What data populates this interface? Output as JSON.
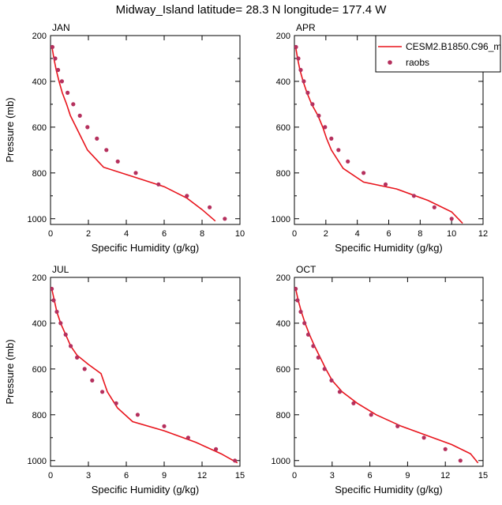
{
  "figure": {
    "title": "Midway_Island  latitude= 28.3 N longitude= 177.4 W"
  },
  "colors": {
    "model_line": "#e8141c",
    "obs_marker": "#b5305d",
    "axis": "#000000"
  },
  "chart_data": [
    {
      "type": "line",
      "panel_label": "JAN",
      "xlabel": "Specific Humidity (g/kg)",
      "ylabel": "Pressure (mb)",
      "xlim": [
        0,
        10
      ],
      "ylim": [
        200,
        1025
      ],
      "y_reversed": true,
      "xticks": [
        0,
        2,
        4,
        6,
        8,
        10
      ],
      "yticks": [
        200,
        400,
        600,
        800,
        1000
      ],
      "series": [
        {
          "name": "CESM2.B1850.C96_m",
          "style": "line",
          "points": [
            [
              0.08,
              250
            ],
            [
              0.18,
              300
            ],
            [
              0.3,
              350
            ],
            [
              0.45,
              400
            ],
            [
              0.62,
              450
            ],
            [
              0.85,
              500
            ],
            [
              1.05,
              550
            ],
            [
              1.35,
              600
            ],
            [
              1.65,
              650
            ],
            [
              1.95,
              700
            ],
            [
              2.8,
              775
            ],
            [
              4.5,
              820
            ],
            [
              6.0,
              860
            ],
            [
              7.2,
              910
            ],
            [
              8.0,
              960
            ],
            [
              8.7,
              1010
            ]
          ]
        },
        {
          "name": "raobs",
          "style": "marker",
          "points": [
            [
              0.1,
              250
            ],
            [
              0.25,
              300
            ],
            [
              0.4,
              350
            ],
            [
              0.6,
              400
            ],
            [
              0.9,
              450
            ],
            [
              1.2,
              500
            ],
            [
              1.55,
              550
            ],
            [
              1.95,
              600
            ],
            [
              2.45,
              650
            ],
            [
              2.95,
              700
            ],
            [
              3.55,
              750
            ],
            [
              4.5,
              800
            ],
            [
              5.7,
              850
            ],
            [
              7.2,
              900
            ],
            [
              8.4,
              950
            ],
            [
              9.2,
              1000
            ]
          ]
        }
      ]
    },
    {
      "type": "line",
      "panel_label": "APR",
      "xlabel": "Specific Humidity (g/kg)",
      "ylabel": "",
      "xlim": [
        0,
        12
      ],
      "ylim": [
        200,
        1025
      ],
      "y_reversed": true,
      "xticks": [
        0,
        2,
        4,
        6,
        8,
        10,
        12
      ],
      "yticks": [
        200,
        400,
        600,
        800,
        1000
      ],
      "legend": "top-right",
      "series": [
        {
          "name": "CESM2.B1850.C96_m",
          "style": "line",
          "points": [
            [
              0.08,
              250
            ],
            [
              0.2,
              300
            ],
            [
              0.35,
              350
            ],
            [
              0.55,
              400
            ],
            [
              0.8,
              450
            ],
            [
              1.1,
              500
            ],
            [
              1.5,
              550
            ],
            [
              1.8,
              600
            ],
            [
              2.05,
              650
            ],
            [
              2.35,
              700
            ],
            [
              3.1,
              780
            ],
            [
              4.4,
              840
            ],
            [
              6.5,
              870
            ],
            [
              8.5,
              920
            ],
            [
              10.0,
              970
            ],
            [
              10.7,
              1020
            ]
          ]
        },
        {
          "name": "raobs",
          "style": "marker",
          "points": [
            [
              0.1,
              250
            ],
            [
              0.25,
              300
            ],
            [
              0.4,
              350
            ],
            [
              0.6,
              400
            ],
            [
              0.85,
              450
            ],
            [
              1.15,
              500
            ],
            [
              1.55,
              550
            ],
            [
              1.95,
              600
            ],
            [
              2.35,
              650
            ],
            [
              2.8,
              700
            ],
            [
              3.4,
              750
            ],
            [
              4.4,
              800
            ],
            [
              5.8,
              850
            ],
            [
              7.6,
              900
            ],
            [
              8.9,
              950
            ],
            [
              10.0,
              1000
            ]
          ]
        }
      ]
    },
    {
      "type": "line",
      "panel_label": "JUL",
      "xlabel": "Specific Humidity (g/kg)",
      "ylabel": "Pressure (mb)",
      "xlim": [
        0,
        15
      ],
      "ylim": [
        200,
        1025
      ],
      "y_reversed": true,
      "xticks": [
        0,
        3,
        6,
        9,
        12,
        15
      ],
      "yticks": [
        200,
        400,
        600,
        800,
        1000
      ],
      "series": [
        {
          "name": "CESM2.B1850.C96_m",
          "style": "line",
          "points": [
            [
              0.1,
              250
            ],
            [
              0.3,
              300
            ],
            [
              0.5,
              350
            ],
            [
              0.8,
              400
            ],
            [
              1.2,
              450
            ],
            [
              1.6,
              500
            ],
            [
              2.1,
              540
            ],
            [
              3.0,
              580
            ],
            [
              4.0,
              620
            ],
            [
              4.5,
              700
            ],
            [
              5.3,
              770
            ],
            [
              6.5,
              830
            ],
            [
              9.0,
              870
            ],
            [
              11.5,
              920
            ],
            [
              13.5,
              970
            ],
            [
              14.8,
              1010
            ]
          ]
        },
        {
          "name": "raobs",
          "style": "marker",
          "points": [
            [
              0.1,
              250
            ],
            [
              0.25,
              300
            ],
            [
              0.5,
              350
            ],
            [
              0.8,
              400
            ],
            [
              1.2,
              450
            ],
            [
              1.6,
              500
            ],
            [
              2.1,
              550
            ],
            [
              2.7,
              600
            ],
            [
              3.3,
              650
            ],
            [
              4.1,
              700
            ],
            [
              5.2,
              750
            ],
            [
              6.9,
              800
            ],
            [
              9.0,
              850
            ],
            [
              10.9,
              900
            ],
            [
              13.1,
              950
            ],
            [
              14.6,
              1000
            ]
          ]
        }
      ]
    },
    {
      "type": "line",
      "panel_label": "OCT",
      "xlabel": "Specific Humidity (g/kg)",
      "ylabel": "",
      "xlim": [
        0,
        15
      ],
      "ylim": [
        200,
        1025
      ],
      "y_reversed": true,
      "xticks": [
        0,
        3,
        6,
        9,
        12,
        15
      ],
      "yticks": [
        200,
        400,
        600,
        800,
        1000
      ],
      "series": [
        {
          "name": "CESM2.B1850.C96_m",
          "style": "line",
          "points": [
            [
              0.1,
              250
            ],
            [
              0.3,
              300
            ],
            [
              0.55,
              350
            ],
            [
              0.85,
              400
            ],
            [
              1.2,
              450
            ],
            [
              1.6,
              500
            ],
            [
              2.05,
              550
            ],
            [
              2.5,
              600
            ],
            [
              3.0,
              650
            ],
            [
              3.8,
              700
            ],
            [
              5.0,
              750
            ],
            [
              6.5,
              800
            ],
            [
              8.5,
              850
            ],
            [
              10.5,
              890
            ],
            [
              12.5,
              930
            ],
            [
              14.0,
              970
            ],
            [
              14.6,
              1010
            ]
          ]
        },
        {
          "name": "raobs",
          "style": "marker",
          "points": [
            [
              0.1,
              250
            ],
            [
              0.25,
              300
            ],
            [
              0.5,
              350
            ],
            [
              0.8,
              400
            ],
            [
              1.1,
              450
            ],
            [
              1.5,
              500
            ],
            [
              1.9,
              550
            ],
            [
              2.4,
              600
            ],
            [
              2.95,
              650
            ],
            [
              3.6,
              700
            ],
            [
              4.7,
              750
            ],
            [
              6.1,
              800
            ],
            [
              8.2,
              850
            ],
            [
              10.3,
              900
            ],
            [
              12.0,
              950
            ],
            [
              13.2,
              1000
            ]
          ]
        }
      ]
    }
  ]
}
